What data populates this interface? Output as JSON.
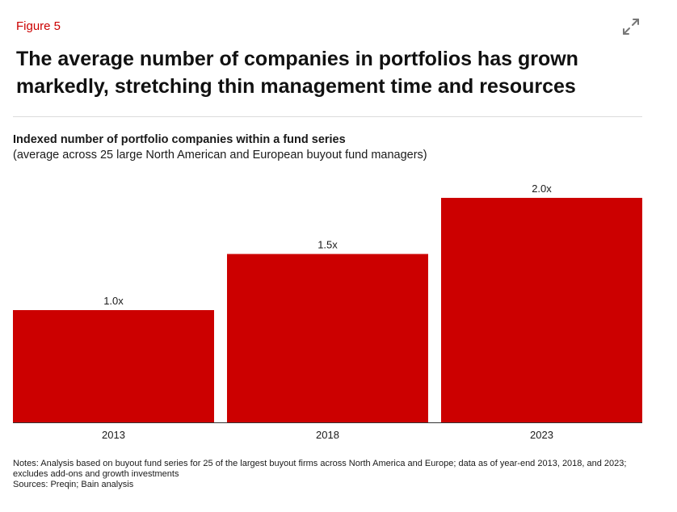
{
  "figure_label": "Figure 5",
  "headline": "The average number of companies in portfolios has grown markedly, stretching thin management time and resources",
  "expand_icon": "expand-arrows-icon",
  "colors": {
    "accent": "#cc0000",
    "bar": "#cc0000",
    "text": "#1a1a1a"
  },
  "chart_data": {
    "type": "bar",
    "title": "Indexed number of portfolio companies within a fund series",
    "subtitle": "(average across 25 large North American and European buyout fund managers)",
    "categories": [
      "2013",
      "2018",
      "2023"
    ],
    "values": [
      1.0,
      1.5,
      2.0
    ],
    "value_labels": [
      "1.0x",
      "1.5x",
      "2.0x"
    ],
    "ylim": [
      0,
      2.2
    ],
    "xlabel": "",
    "ylabel": "",
    "grid": false,
    "legend": "none"
  },
  "notes": "Notes: Analysis based on buyout fund series for 25 of the largest buyout firms across North America and Europe; data as of year-end 2013, 2018, and 2023; excludes add-ons and growth investments",
  "sources": "Sources: Preqin; Bain analysis"
}
